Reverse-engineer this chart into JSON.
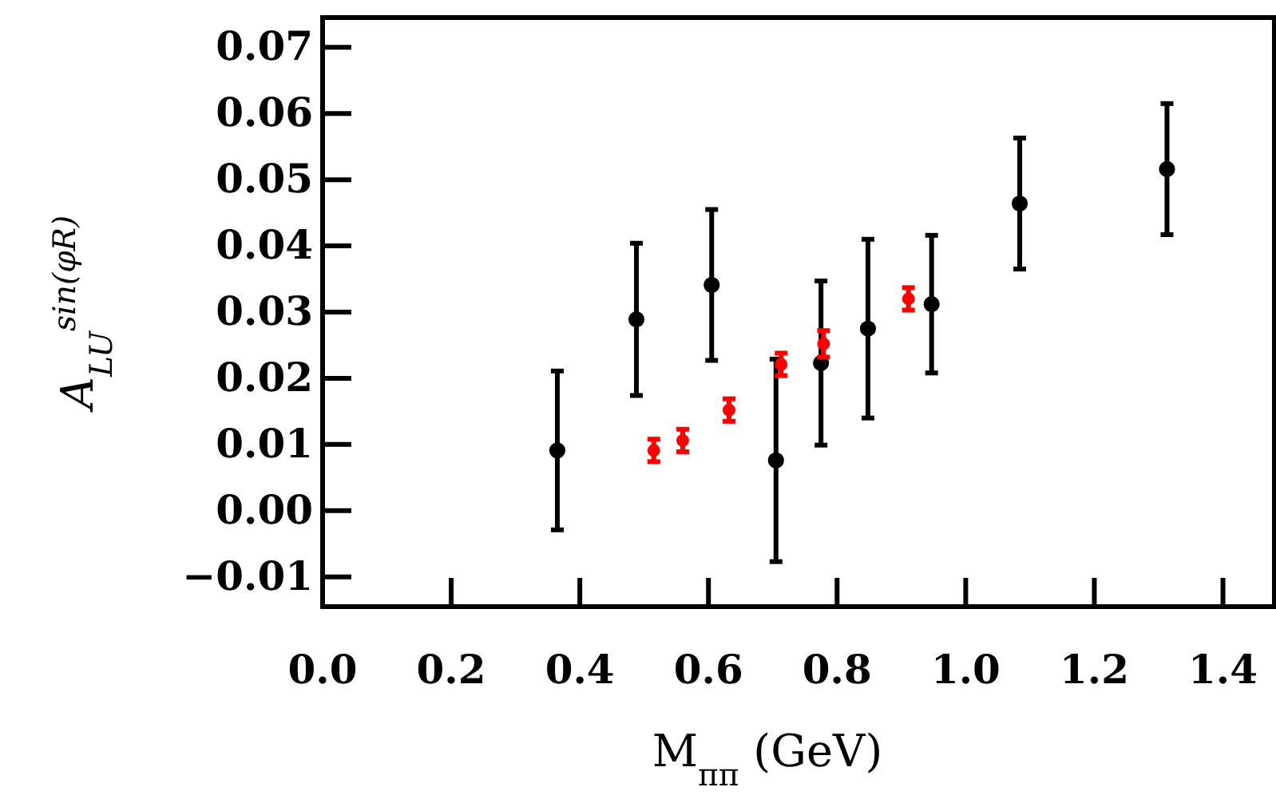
{
  "chart_data": {
    "type": "scatter",
    "xlabel": "M$_{ππ}$ (GeV)",
    "ylabel": "A$_{LU}$$^{sin(φR)}$",
    "marker": "circle",
    "grid": false,
    "xlim": [
      0,
      1.48
    ],
    "ylim": [
      -0.0145,
      0.0745
    ],
    "xticks": [
      {
        "value": 0,
        "label": "0.0"
      },
      {
        "value": 0.2,
        "label": "0.2"
      },
      {
        "value": 0.4,
        "label": "0.4"
      },
      {
        "value": 0.6,
        "label": "0.6"
      },
      {
        "value": 0.8,
        "label": "0.8"
      },
      {
        "value": 1,
        "label": "1.0"
      },
      {
        "value": 1.2,
        "label": "1.2"
      },
      {
        "value": 1.4,
        "label": "1.4"
      }
    ],
    "yticks": [
      {
        "value": -0.01,
        "label": "−0.01"
      },
      {
        "value": 0,
        "label": "0.00"
      },
      0.01,
      0.02,
      0.03,
      0.04,
      0.05,
      0.06,
      0.07
    ],
    "series": [
      {
        "color": "#000000",
        "x": [
          0.365,
          0.488,
          0.605,
          0.705,
          0.775,
          0.848,
          0.947,
          1.084,
          1.313
        ],
        "values": [
          0.0091,
          0.0289,
          0.0341,
          0.0076,
          0.0223,
          0.0275,
          0.0312,
          0.0464,
          0.0516
        ],
        "errors": [
          0.012,
          0.0115,
          0.0114,
          0.0153,
          0.0124,
          0.0135,
          0.0104,
          0.0099,
          0.0099
        ]
      },
      {
        "color": "#ff0000",
        "x": [
          0.515,
          0.56,
          0.632,
          0.713,
          0.779,
          0.911
        ],
        "values": [
          0.0091,
          0.0106,
          0.0152,
          0.0221,
          0.0252,
          0.032
        ],
        "errors": [
          0.0017,
          0.0017,
          0.0017,
          0.0017,
          0.002,
          0.0017
        ]
      }
    ]
  }
}
